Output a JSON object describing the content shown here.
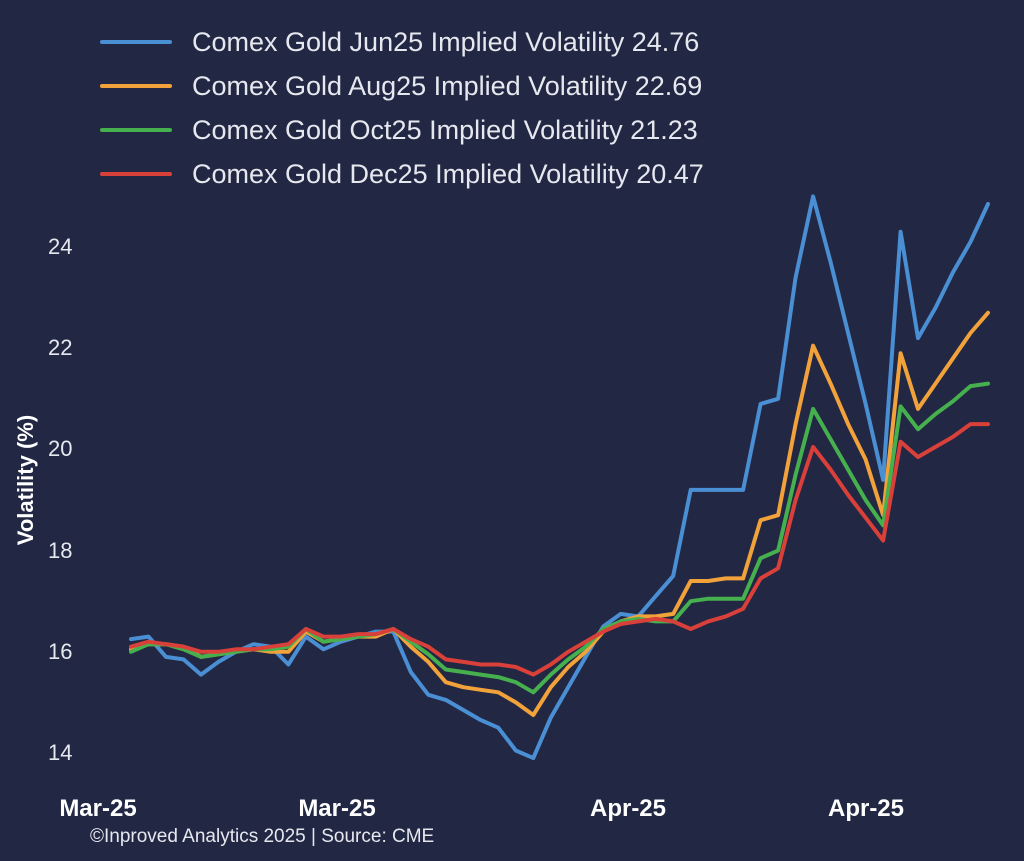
{
  "chart_data": {
    "type": "line",
    "ylabel": "Volatility (%)",
    "xlabel": "",
    "ylim": [
      13.3,
      25.4
    ],
    "yticks": [
      "14",
      "16",
      "18",
      "20",
      "22",
      "24"
    ],
    "xtick_labels": [
      "Mar-25",
      "Mar-25",
      "Apr-25",
      "Apr-25"
    ],
    "grid": false,
    "legend_position": "top-left",
    "footer": "©Inproved Analytics 2025 | Source: CME",
    "x": [
      1,
      2,
      3,
      4,
      5,
      6,
      7,
      8,
      9,
      10,
      11,
      12,
      13,
      14,
      15,
      16,
      17,
      18,
      19,
      20,
      21,
      22,
      23,
      24,
      25,
      26,
      27,
      28,
      29,
      30,
      31,
      32,
      33,
      34,
      35,
      36,
      37,
      38,
      39,
      40,
      41,
      42,
      43,
      44,
      45,
      46,
      47,
      48,
      49,
      50
    ],
    "series": [
      {
        "name": "Comex Gold Jun25 Implied Volatility 24.76",
        "color": "#4a8fd4",
        "values": [
          16.25,
          16.3,
          15.9,
          15.85,
          15.55,
          15.8,
          16.0,
          16.15,
          16.1,
          15.75,
          16.3,
          16.05,
          16.2,
          16.3,
          16.4,
          16.4,
          15.6,
          15.15,
          15.05,
          14.85,
          14.65,
          14.5,
          14.05,
          13.9,
          14.7,
          15.3,
          15.9,
          16.5,
          16.75,
          16.7,
          17.1,
          17.5,
          19.2,
          19.2,
          19.2,
          19.2,
          20.9,
          21.0,
          23.4,
          25.0,
          23.7,
          22.3,
          20.9,
          19.4,
          24.3,
          22.2,
          22.8,
          23.5,
          24.1,
          24.85
        ]
      },
      {
        "name": "Comex Gold Aug25 Implied Volatility 22.69",
        "color": "#f2a23a",
        "values": [
          16.05,
          16.15,
          16.15,
          16.1,
          15.9,
          15.95,
          16.0,
          16.05,
          16.0,
          16.0,
          16.4,
          16.2,
          16.25,
          16.3,
          16.3,
          16.45,
          16.1,
          15.8,
          15.4,
          15.3,
          15.25,
          15.2,
          15.0,
          14.75,
          15.3,
          15.7,
          16.0,
          16.4,
          16.6,
          16.7,
          16.7,
          16.75,
          17.4,
          17.4,
          17.45,
          17.45,
          18.6,
          18.7,
          20.5,
          22.05,
          21.3,
          20.5,
          19.8,
          18.7,
          21.9,
          20.8,
          21.3,
          21.8,
          22.3,
          22.7
        ]
      },
      {
        "name": "Comex Gold Oct25 Implied Volatility 21.23",
        "color": "#45b04d",
        "values": [
          16.0,
          16.15,
          16.15,
          16.05,
          15.9,
          15.95,
          16.0,
          16.05,
          16.05,
          16.1,
          16.45,
          16.2,
          16.25,
          16.3,
          16.35,
          16.45,
          16.2,
          15.95,
          15.65,
          15.6,
          15.55,
          15.5,
          15.4,
          15.2,
          15.55,
          15.85,
          16.1,
          16.45,
          16.6,
          16.65,
          16.6,
          16.6,
          17.0,
          17.05,
          17.05,
          17.05,
          17.85,
          18.0,
          19.5,
          20.8,
          20.2,
          19.6,
          19.0,
          18.5,
          20.85,
          20.4,
          20.7,
          20.95,
          21.25,
          21.3
        ]
      },
      {
        "name": "Comex Gold Dec25 Implied Volatility 20.47",
        "color": "#d9403a",
        "values": [
          16.1,
          16.2,
          16.15,
          16.1,
          16.0,
          16.0,
          16.05,
          16.05,
          16.1,
          16.15,
          16.45,
          16.3,
          16.3,
          16.35,
          16.35,
          16.45,
          16.25,
          16.1,
          15.85,
          15.8,
          15.75,
          15.75,
          15.7,
          15.55,
          15.75,
          16.0,
          16.2,
          16.4,
          16.55,
          16.6,
          16.65,
          16.6,
          16.45,
          16.6,
          16.7,
          16.85,
          17.45,
          17.65,
          19.0,
          20.05,
          19.6,
          19.1,
          18.65,
          18.2,
          20.15,
          19.85,
          20.05,
          20.25,
          20.5,
          20.5
        ]
      }
    ]
  }
}
